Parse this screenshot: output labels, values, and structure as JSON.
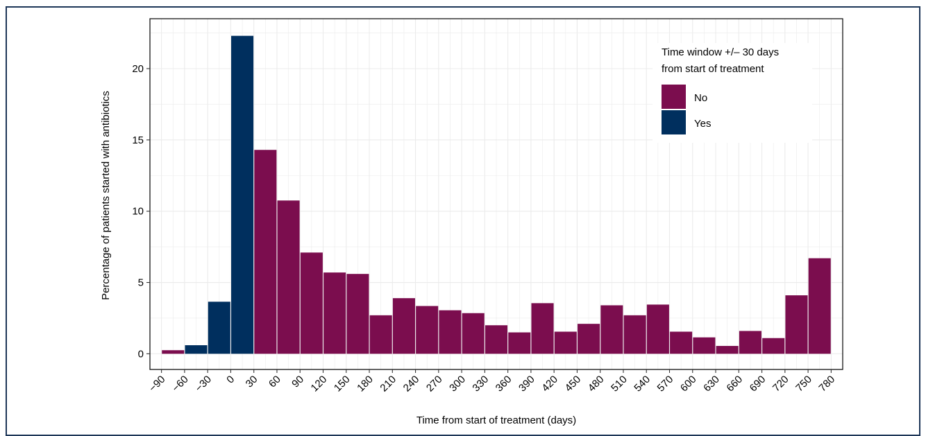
{
  "chart_data": {
    "type": "bar",
    "xlabel": "Time from start of treatment (days)",
    "ylabel": "Percentage of patients started with antibiotics",
    "x_ticks": [
      "−90",
      "−60",
      "−30",
      "0",
      "30",
      "60",
      "90",
      "120",
      "150",
      "180",
      "210",
      "240",
      "270",
      "300",
      "330",
      "360",
      "390",
      "420",
      "450",
      "480",
      "510",
      "540",
      "570",
      "600",
      "630",
      "660",
      "690",
      "720",
      "750",
      "780"
    ],
    "y_ticks": [
      "0",
      "5",
      "10",
      "15",
      "20"
    ],
    "xlim": [
      -105,
      795
    ],
    "ylim": [
      -1.1,
      23.5
    ],
    "bin_width": 30,
    "grid": true,
    "legend": {
      "title": "Time window +/– 30 days\nfrom start of treatment",
      "position": "top-right",
      "entries": [
        {
          "label": "No",
          "color": "#7b0d4e"
        },
        {
          "label": "Yes",
          "color": "#002f5e"
        }
      ]
    },
    "bars": [
      {
        "x": -90,
        "value": 0.25,
        "group": "No"
      },
      {
        "x": -60,
        "value": 0.6,
        "group": "Yes"
      },
      {
        "x": -30,
        "value": 3.65,
        "group": "Yes"
      },
      {
        "x": 0,
        "value": 22.3,
        "group": "Yes"
      },
      {
        "x": 30,
        "value": 14.3,
        "group": "No"
      },
      {
        "x": 60,
        "value": 10.75,
        "group": "No"
      },
      {
        "x": 90,
        "value": 7.1,
        "group": "No"
      },
      {
        "x": 120,
        "value": 5.7,
        "group": "No"
      },
      {
        "x": 150,
        "value": 5.6,
        "group": "No"
      },
      {
        "x": 180,
        "value": 2.7,
        "group": "No"
      },
      {
        "x": 210,
        "value": 3.9,
        "group": "No"
      },
      {
        "x": 240,
        "value": 3.35,
        "group": "No"
      },
      {
        "x": 270,
        "value": 3.05,
        "group": "No"
      },
      {
        "x": 300,
        "value": 2.85,
        "group": "No"
      },
      {
        "x": 330,
        "value": 2.0,
        "group": "No"
      },
      {
        "x": 360,
        "value": 1.5,
        "group": "No"
      },
      {
        "x": 390,
        "value": 3.55,
        "group": "No"
      },
      {
        "x": 420,
        "value": 1.55,
        "group": "No"
      },
      {
        "x": 450,
        "value": 2.1,
        "group": "No"
      },
      {
        "x": 480,
        "value": 3.4,
        "group": "No"
      },
      {
        "x": 510,
        "value": 2.7,
        "group": "No"
      },
      {
        "x": 540,
        "value": 3.45,
        "group": "No"
      },
      {
        "x": 570,
        "value": 1.55,
        "group": "No"
      },
      {
        "x": 600,
        "value": 1.15,
        "group": "No"
      },
      {
        "x": 630,
        "value": 0.55,
        "group": "No"
      },
      {
        "x": 660,
        "value": 1.6,
        "group": "No"
      },
      {
        "x": 690,
        "value": 1.1,
        "group": "No"
      },
      {
        "x": 720,
        "value": 4.1,
        "group": "No"
      },
      {
        "x": 750,
        "value": 6.7,
        "group": "No"
      }
    ]
  }
}
